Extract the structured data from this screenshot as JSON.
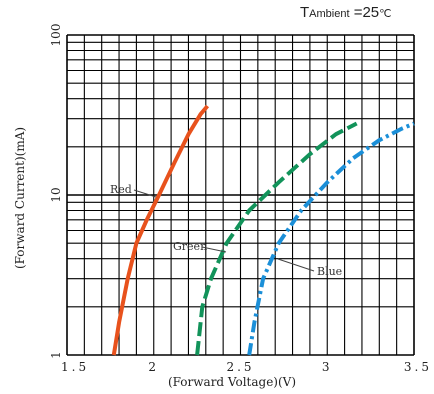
{
  "chart_data": {
    "type": "line",
    "annotation": {
      "t_main": "T",
      "t_sub": "Ambient",
      "t_value": " =25",
      "t_unit": "℃"
    },
    "xlabel": "(Forward  Voltage)(V)",
    "ylabel": "(Forward  Current)(mA)",
    "x_ticks": [
      "1.5",
      "2",
      "2.5",
      "3",
      "3.5"
    ],
    "y_ticks": [
      "100",
      "10",
      "1"
    ],
    "xlim": [
      1.5,
      3.5
    ],
    "ylim": [
      1,
      100
    ],
    "yscale": "log",
    "grid": true,
    "series": [
      {
        "name": "Red",
        "color": "#e8521d",
        "style": "solid",
        "points": [
          [
            1.77,
            1
          ],
          [
            1.8,
            1.6
          ],
          [
            1.85,
            3
          ],
          [
            1.9,
            5
          ],
          [
            1.96,
            7
          ],
          [
            2.03,
            10
          ],
          [
            2.12,
            16
          ],
          [
            2.2,
            24
          ],
          [
            2.27,
            32
          ],
          [
            2.31,
            36
          ]
        ]
      },
      {
        "name": "Green",
        "color": "#12935a",
        "style": "dashed",
        "points": [
          [
            2.25,
            1
          ],
          [
            2.28,
            2
          ],
          [
            2.33,
            3
          ],
          [
            2.42,
            5
          ],
          [
            2.55,
            8
          ],
          [
            2.72,
            12
          ],
          [
            2.9,
            18
          ],
          [
            3.05,
            24
          ],
          [
            3.17,
            28
          ]
        ]
      },
      {
        "name": "Blue",
        "color": "#1b8fd8",
        "style": "dashdot",
        "points": [
          [
            2.55,
            1
          ],
          [
            2.58,
            1.6
          ],
          [
            2.63,
            3
          ],
          [
            2.72,
            5
          ],
          [
            2.85,
            8
          ],
          [
            3.0,
            12
          ],
          [
            3.15,
            17
          ],
          [
            3.3,
            22
          ],
          [
            3.43,
            26
          ],
          [
            3.5,
            28
          ]
        ]
      }
    ]
  }
}
